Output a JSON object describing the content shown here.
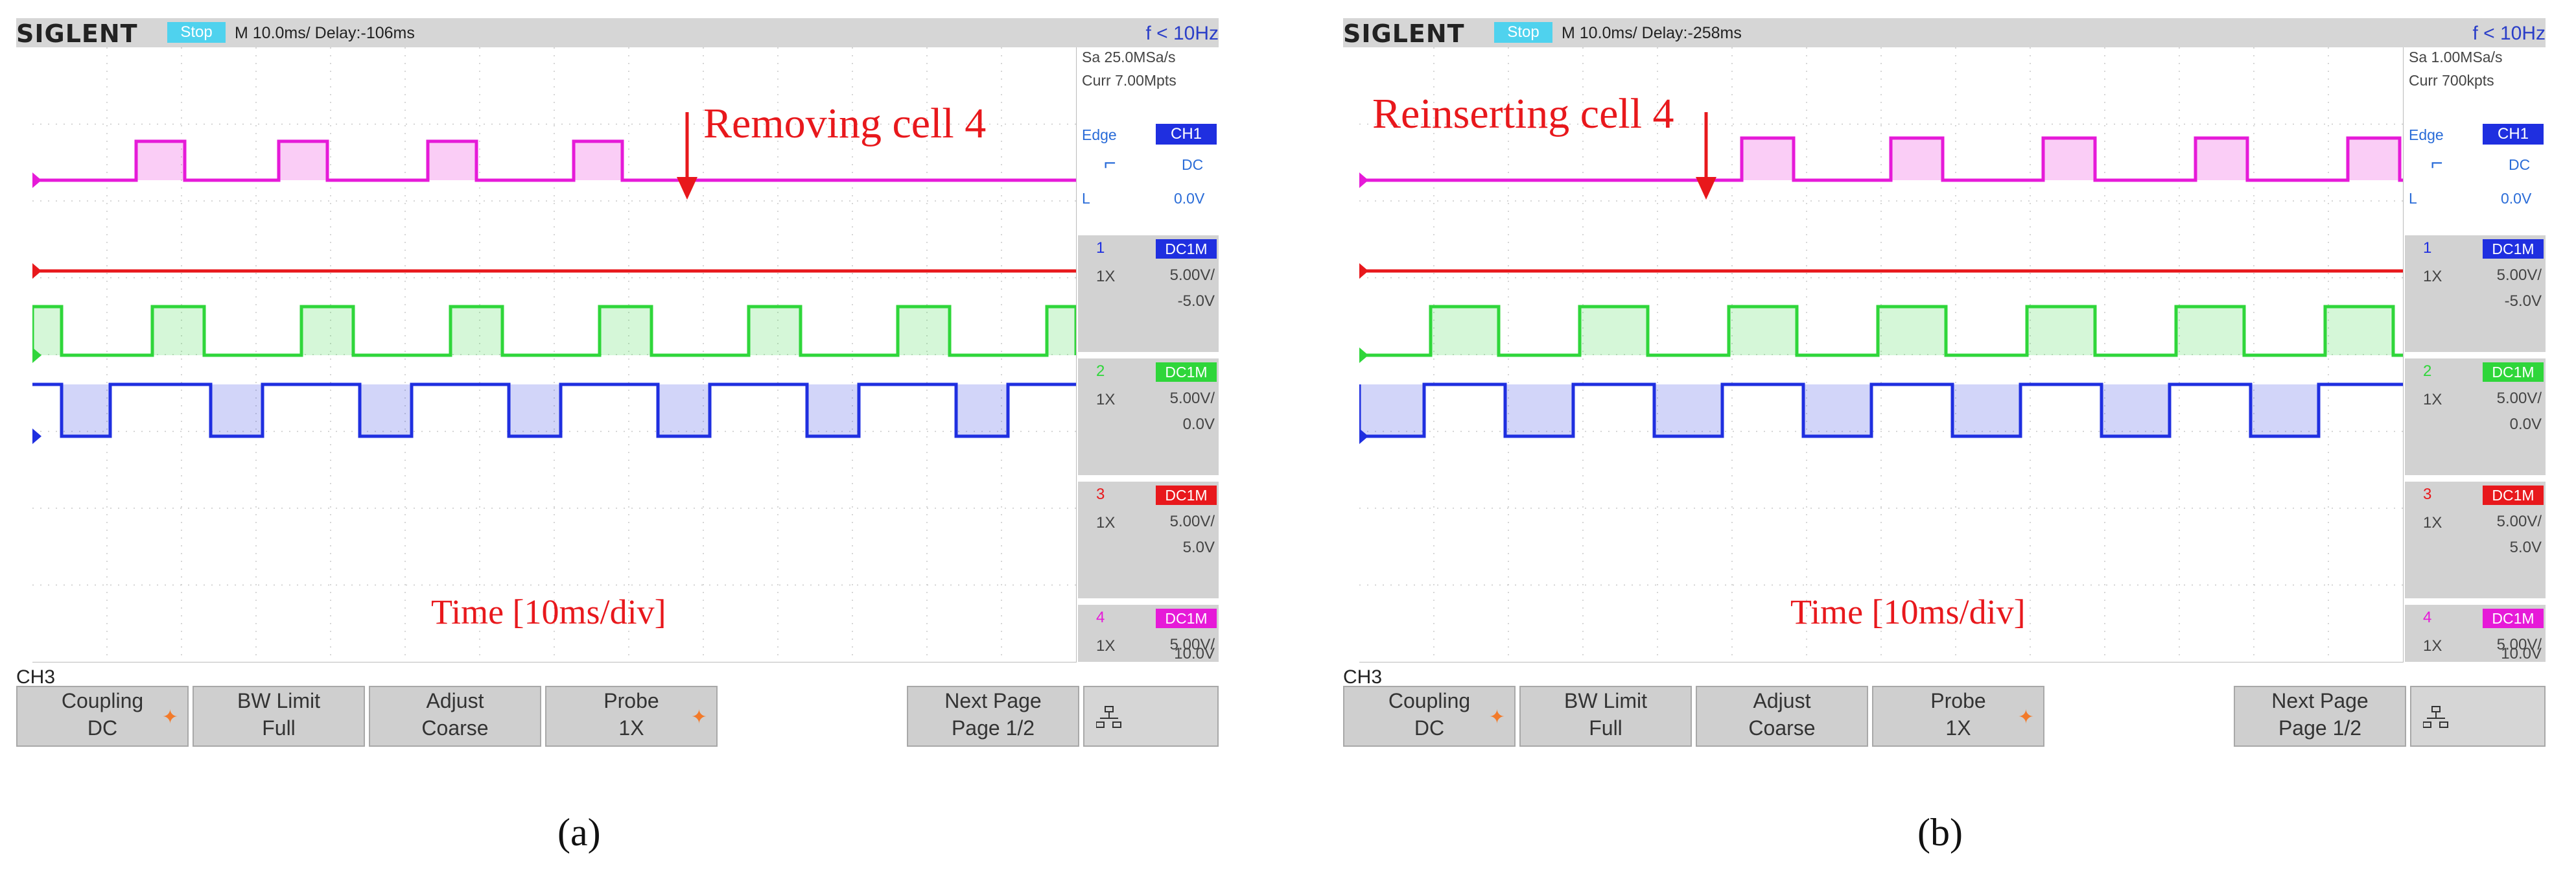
{
  "panels": [
    {
      "id": "a",
      "brand": "SIGLENT",
      "status": "Stop",
      "timebase": "M 10.0ms/ Delay:-106ms",
      "trigger_freq": "f < 10Hz",
      "sample_rate": "Sa 25.0MSa/s",
      "memory": "Curr 7.00Mpts",
      "trigger": {
        "type": "Edge",
        "source": "CH1",
        "coupling": "DC",
        "level_prefix": "L",
        "level": "0.0V"
      },
      "channels": [
        {
          "num": "1",
          "coupling": "DC1M",
          "probe": "1X",
          "vdiv": "5.00V/",
          "offset": "-5.0V",
          "color": "#1f2fe0"
        },
        {
          "num": "2",
          "coupling": "DC1M",
          "probe": "1X",
          "vdiv": "5.00V/",
          "offset": "0.0V",
          "color": "#2fd63a"
        },
        {
          "num": "3",
          "coupling": "DC1M",
          "probe": "1X",
          "vdiv": "5.00V/",
          "offset": "5.0V",
          "color": "#e8181c"
        },
        {
          "num": "4",
          "coupling": "DC1M",
          "probe": "1X",
          "vdiv": "5.00V/",
          "offset": "10.0V",
          "color": "#e61ad8"
        }
      ],
      "annotation": "Removing cell 4",
      "time_label": "Time [10ms/div]",
      "menu_channel": "CH3",
      "softkeys": [
        {
          "line1": "Coupling",
          "line2": "DC",
          "star": "✦"
        },
        {
          "line1": "BW Limit",
          "line2": "Full",
          "star": ""
        },
        {
          "line1": "Adjust",
          "line2": "Coarse",
          "star": ""
        },
        {
          "line1": "Probe",
          "line2": "1X",
          "star": "✦"
        },
        {
          "line1": "Next Page",
          "line2": "Page 1/2",
          "star": ""
        }
      ],
      "caption": "(a)"
    },
    {
      "id": "b",
      "brand": "SIGLENT",
      "status": "Stop",
      "timebase": "M 10.0ms/ Delay:-258ms",
      "trigger_freq": "f < 10Hz",
      "sample_rate": "Sa 1.00MSa/s",
      "memory": "Curr 700kpts",
      "trigger": {
        "type": "Edge",
        "source": "CH1",
        "coupling": "DC",
        "level_prefix": "L",
        "level": "0.0V"
      },
      "channels": [
        {
          "num": "1",
          "coupling": "DC1M",
          "probe": "1X",
          "vdiv": "5.00V/",
          "offset": "-5.0V",
          "color": "#1f2fe0"
        },
        {
          "num": "2",
          "coupling": "DC1M",
          "probe": "1X",
          "vdiv": "5.00V/",
          "offset": "0.0V",
          "color": "#2fd63a"
        },
        {
          "num": "3",
          "coupling": "DC1M",
          "probe": "1X",
          "vdiv": "5.00V/",
          "offset": "5.0V",
          "color": "#e8181c"
        },
        {
          "num": "4",
          "coupling": "DC1M",
          "probe": "1X",
          "vdiv": "5.00V/",
          "offset": "10.0V",
          "color": "#e61ad8"
        }
      ],
      "annotation": "Reinserting cell 4",
      "time_label": "Time [10ms/div]",
      "menu_channel": "CH3",
      "softkeys": [
        {
          "line1": "Coupling",
          "line2": "DC",
          "star": "✦"
        },
        {
          "line1": "BW Limit",
          "line2": "Full",
          "star": ""
        },
        {
          "line1": "Adjust",
          "line2": "Coarse",
          "star": ""
        },
        {
          "line1": "Probe",
          "line2": "1X",
          "star": "✦"
        },
        {
          "line1": "Next Page",
          "line2": "Page 1/2",
          "star": ""
        }
      ],
      "caption": "(b)"
    }
  ],
  "icons": {
    "falling_edge": "edge-trigger-icon",
    "network": "network-icon",
    "star": "star-icon",
    "arrow": "arrow-down-icon"
  }
}
